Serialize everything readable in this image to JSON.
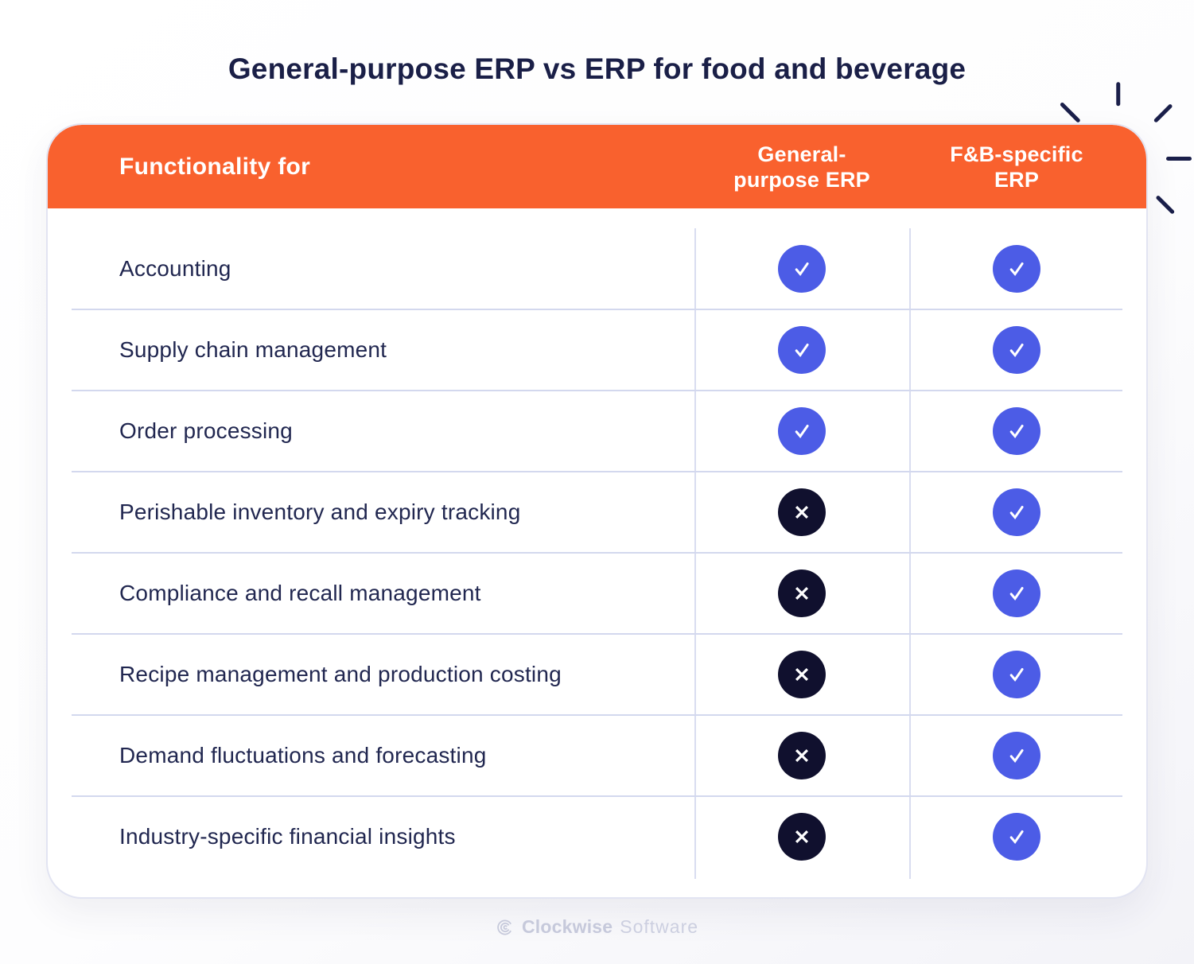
{
  "title": "General-purpose ERP vs ERP for food and beverage",
  "table": {
    "header": {
      "functionality_label": "Functionality for",
      "columns": [
        {
          "line1": "General-",
          "line2": "purpose ERP"
        },
        {
          "line1": "F&B-specific",
          "line2": "ERP"
        }
      ]
    },
    "rows": [
      {
        "feature": "Accounting",
        "general_purpose": true,
        "fnb_specific": true
      },
      {
        "feature": "Supply chain management",
        "general_purpose": true,
        "fnb_specific": true
      },
      {
        "feature": "Order processing",
        "general_purpose": true,
        "fnb_specific": true
      },
      {
        "feature": "Perishable inventory and expiry tracking",
        "general_purpose": false,
        "fnb_specific": true
      },
      {
        "feature": "Compliance and recall management",
        "general_purpose": false,
        "fnb_specific": true
      },
      {
        "feature": "Recipe management and production costing",
        "general_purpose": false,
        "fnb_specific": true
      },
      {
        "feature": "Demand fluctuations and forecasting",
        "general_purpose": false,
        "fnb_specific": true
      },
      {
        "feature": "Industry-specific financial insights",
        "general_purpose": false,
        "fnb_specific": true
      }
    ]
  },
  "chart_data": {
    "type": "table",
    "title": "General-purpose ERP vs ERP for food and beverage",
    "columns": [
      "Functionality for",
      "General-purpose ERP",
      "F&B-specific ERP"
    ],
    "rows": [
      [
        "Accounting",
        "yes",
        "yes"
      ],
      [
        "Supply chain management",
        "yes",
        "yes"
      ],
      [
        "Order processing",
        "yes",
        "yes"
      ],
      [
        "Perishable inventory and expiry tracking",
        "no",
        "yes"
      ],
      [
        "Compliance and recall management",
        "no",
        "yes"
      ],
      [
        "Recipe management and production costing",
        "no",
        "yes"
      ],
      [
        "Demand fluctuations and forecasting",
        "no",
        "yes"
      ],
      [
        "Industry-specific financial insights",
        "no",
        "yes"
      ]
    ]
  },
  "icons": {
    "check": "check-icon",
    "cross": "cross-icon"
  },
  "colors": {
    "header_orange": "#f9612e",
    "check_blue": "#4c5ce6",
    "cross_navy": "#10102e",
    "title_navy": "#1a1f47",
    "row_text": "#212750",
    "divider": "#d3d8ee",
    "footer_gray": "#c6c9db"
  },
  "footer": {
    "brand_bold": "Clockwise",
    "brand_light": "Software"
  }
}
